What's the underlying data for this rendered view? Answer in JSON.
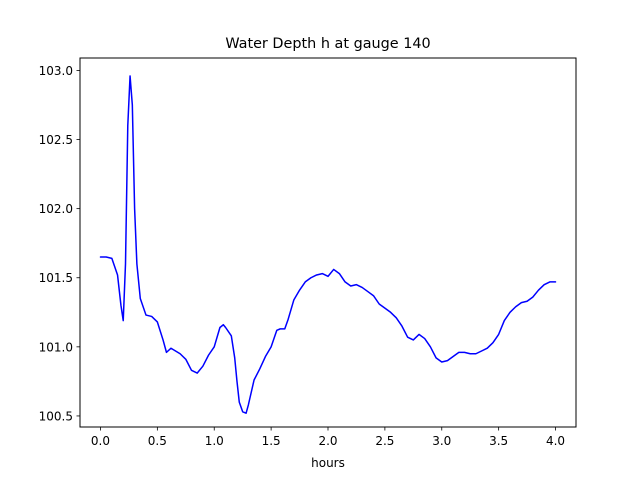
{
  "chart_data": {
    "type": "line",
    "title": "Water Depth h at gauge 140",
    "xlabel": "hours",
    "ylabel": "",
    "xlim": [
      -0.18,
      4.18
    ],
    "ylim": [
      100.42,
      103.09
    ],
    "xticks": [
      0.0,
      0.5,
      1.0,
      1.5,
      2.0,
      2.5,
      3.0,
      3.5,
      4.0
    ],
    "xtick_labels": [
      "0.0",
      "0.5",
      "1.0",
      "1.5",
      "2.0",
      "2.5",
      "3.0",
      "3.5",
      "4.0"
    ],
    "yticks": [
      100.5,
      101.0,
      101.5,
      102.0,
      102.5,
      103.0
    ],
    "ytick_labels": [
      "100.5",
      "101.0",
      "101.5",
      "102.0",
      "102.5",
      "103.0"
    ],
    "grid": false,
    "legend": "none",
    "series": [
      {
        "color": "#0000ff",
        "x": [
          0.0,
          0.05,
          0.1,
          0.15,
          0.18,
          0.2,
          0.22,
          0.24,
          0.26,
          0.28,
          0.3,
          0.32,
          0.35,
          0.4,
          0.45,
          0.5,
          0.55,
          0.58,
          0.62,
          0.66,
          0.7,
          0.75,
          0.8,
          0.85,
          0.9,
          0.95,
          1.0,
          1.05,
          1.08,
          1.1,
          1.15,
          1.18,
          1.2,
          1.22,
          1.25,
          1.28,
          1.3,
          1.35,
          1.4,
          1.45,
          1.5,
          1.55,
          1.58,
          1.62,
          1.65,
          1.7,
          1.75,
          1.8,
          1.85,
          1.9,
          1.95,
          2.0,
          2.05,
          2.1,
          2.15,
          2.2,
          2.25,
          2.3,
          2.35,
          2.4,
          2.45,
          2.5,
          2.55,
          2.6,
          2.65,
          2.7,
          2.75,
          2.8,
          2.85,
          2.9,
          2.95,
          3.0,
          3.05,
          3.1,
          3.15,
          3.2,
          3.25,
          3.3,
          3.35,
          3.4,
          3.45,
          3.5,
          3.55,
          3.6,
          3.65,
          3.7,
          3.75,
          3.8,
          3.85,
          3.9,
          3.95,
          4.0
        ],
        "y": [
          101.65,
          101.65,
          101.64,
          101.52,
          101.3,
          101.19,
          101.6,
          102.6,
          102.96,
          102.75,
          102.0,
          101.6,
          101.35,
          101.23,
          101.22,
          101.18,
          101.05,
          100.96,
          100.99,
          100.97,
          100.95,
          100.91,
          100.83,
          100.81,
          100.86,
          100.94,
          101.0,
          101.14,
          101.16,
          101.14,
          101.08,
          100.92,
          100.75,
          100.6,
          100.53,
          100.52,
          100.58,
          100.76,
          100.84,
          100.93,
          101.0,
          101.12,
          101.13,
          101.13,
          101.2,
          101.34,
          101.41,
          101.47,
          101.5,
          101.52,
          101.53,
          101.51,
          101.56,
          101.53,
          101.47,
          101.44,
          101.45,
          101.43,
          101.4,
          101.37,
          101.31,
          101.28,
          101.25,
          101.21,
          101.15,
          101.07,
          101.05,
          101.09,
          101.06,
          101.0,
          100.92,
          100.89,
          100.9,
          100.93,
          100.96,
          100.96,
          100.95,
          100.95,
          100.97,
          100.99,
          101.03,
          101.09,
          101.19,
          101.25,
          101.29,
          101.32,
          101.33,
          101.36,
          101.41,
          101.45,
          101.47,
          101.47
        ]
      }
    ]
  }
}
